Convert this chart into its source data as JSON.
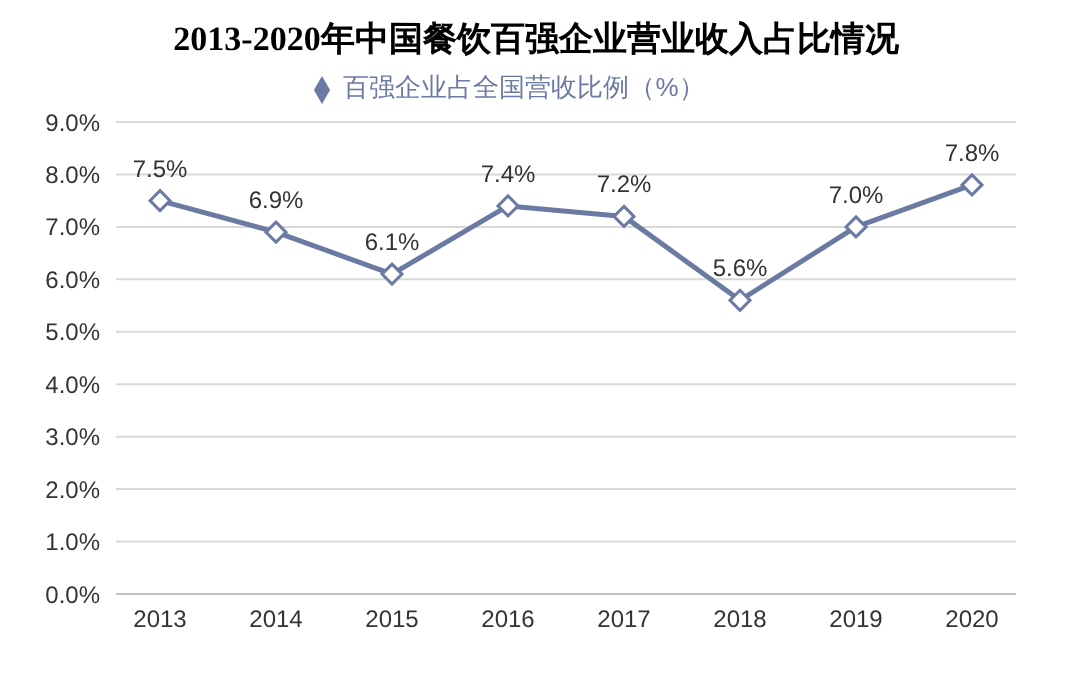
{
  "chart_data": {
    "type": "line",
    "title": "2013-2020年中国餐饮百强企业营业收入占比情况",
    "categories": [
      "2013",
      "2014",
      "2015",
      "2016",
      "2017",
      "2018",
      "2019",
      "2020"
    ],
    "series": [
      {
        "name": "百强企业占全国营收比例（%）",
        "color": "#6b7aa3",
        "values": [
          7.5,
          6.9,
          6.1,
          7.4,
          7.2,
          5.6,
          7.0,
          7.8
        ],
        "value_labels": [
          "7.5%",
          "6.9%",
          "6.1%",
          "7.4%",
          "7.2%",
          "5.6%",
          "7.0%",
          "7.8%"
        ]
      }
    ],
    "ylim": [
      0,
      9
    ],
    "yticks": [
      {
        "value": 0,
        "label": "0.0%"
      },
      {
        "value": 1,
        "label": "1.0%"
      },
      {
        "value": 2,
        "label": "2.0%"
      },
      {
        "value": 3,
        "label": "3.0%"
      },
      {
        "value": 4,
        "label": "4.0%"
      },
      {
        "value": 5,
        "label": "5.0%"
      },
      {
        "value": 6,
        "label": "6.0%"
      },
      {
        "value": 7,
        "label": "7.0%"
      },
      {
        "value": 8,
        "label": "8.0%"
      },
      {
        "value": 9,
        "label": "9.0%"
      }
    ],
    "grid": "y",
    "legend": "top",
    "marker": "diamond",
    "line_style": "solid"
  }
}
